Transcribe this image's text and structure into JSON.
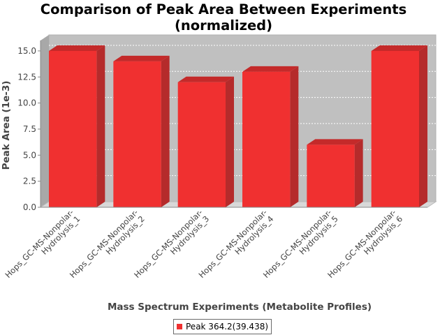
{
  "chart_data": {
    "type": "bar",
    "title": [
      "Comparison of Peak Area Between Experiments",
      "(normalized)"
    ],
    "xlabel": "Mass Spectrum Experiments (Metabolite Profiles)",
    "ylabel": "Peak Area (1e-3)",
    "ylim": [
      0,
      16
    ],
    "yticks": [
      "0.0",
      "2.5",
      "5.0",
      "7.5",
      "10.0",
      "12.5",
      "15.0"
    ],
    "categories": [
      [
        "Hops_GC-MS-Nonpolar-",
        "Hydrolysis_1"
      ],
      [
        "Hops_GC-MS-Nonpolar-",
        "Hydrolysis_2"
      ],
      [
        "Hops_GC-MS-Nonpolar-",
        "Hydrolysis_3"
      ],
      [
        "Hops_GC-MS-Nonpolar-",
        "Hydrolysis_4"
      ],
      [
        "Hops_GC-MS-Nonpolar-",
        "Hydrolysis_5"
      ],
      [
        "Hops_GC-MS-Nonpolar-",
        "Hydrolysis_6"
      ]
    ],
    "series": [
      {
        "name": "Peak 364.2(39.438)",
        "values": [
          15.0,
          14.0,
          12.0,
          13.0,
          6.0,
          15.0
        ]
      }
    ],
    "grid": true,
    "legend_position": "bottom",
    "colors": {
      "bar_front": "#f03030",
      "bar_side": "#b52b2b",
      "bar_top": "#c42a2a",
      "plot_back": "#c0c0c0",
      "plot_floor": "#d8d8d8"
    }
  }
}
